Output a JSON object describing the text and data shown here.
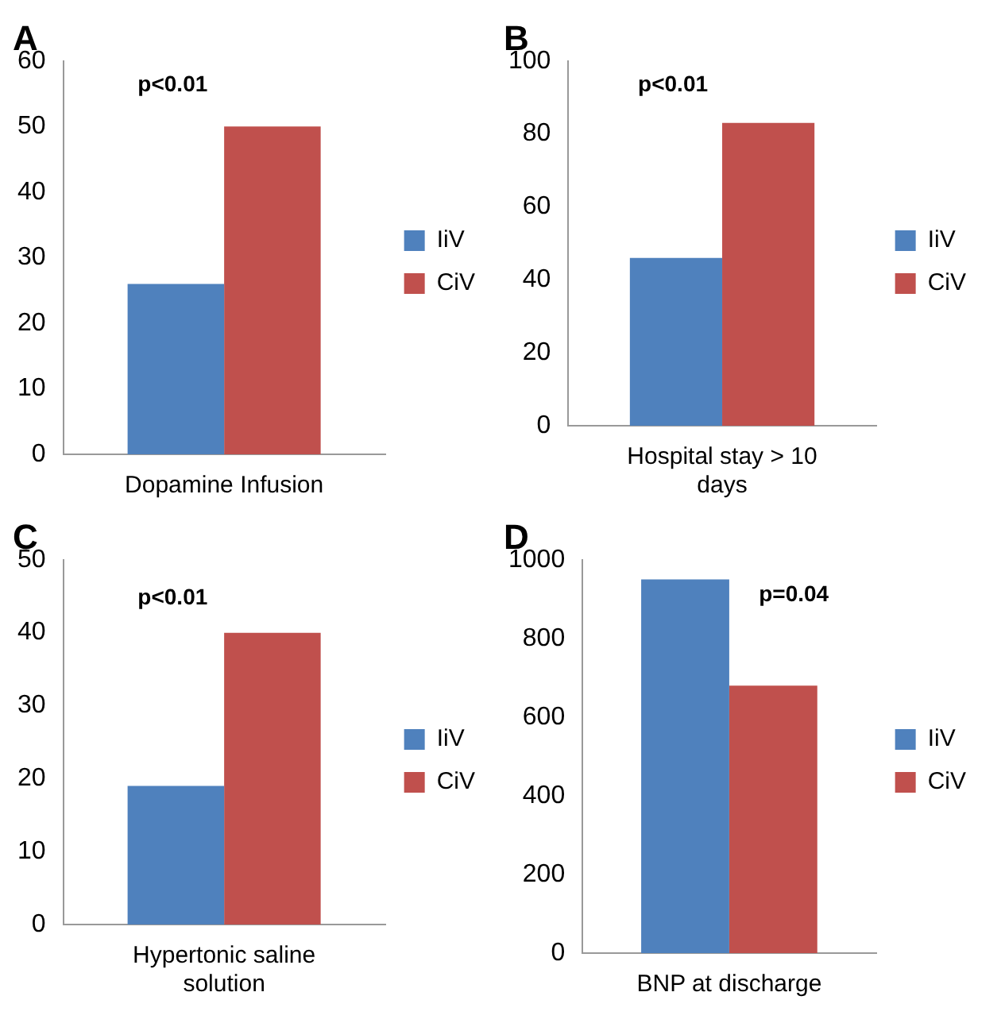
{
  "chart_data": [
    {
      "type": "bar",
      "title": "A",
      "categories": [
        "Dopamine Infusion"
      ],
      "series": [
        {
          "name": "IiV",
          "color": "#4f81bd",
          "values": [
            26
          ]
        },
        {
          "name": "CiV",
          "color": "#c0504d",
          "values": [
            50
          ]
        }
      ],
      "ylim": [
        0,
        60
      ],
      "yticks": [
        0,
        10,
        20,
        30,
        40,
        50,
        60
      ],
      "grid": false,
      "legend": "right",
      "annotations": [
        "p<0.01"
      ]
    },
    {
      "type": "bar",
      "title": "B",
      "categories": [
        "Hospital stay > 10 days"
      ],
      "series": [
        {
          "name": "IiV",
          "color": "#4f81bd",
          "values": [
            46
          ]
        },
        {
          "name": "CiV",
          "color": "#c0504d",
          "values": [
            83
          ]
        }
      ],
      "ylim": [
        0,
        100
      ],
      "yticks": [
        0,
        20,
        40,
        60,
        80,
        100
      ],
      "grid": false,
      "legend": "right",
      "annotations": [
        "p<0.01"
      ]
    },
    {
      "type": "bar",
      "title": "C",
      "categories": [
        "Hypertonic saline solution"
      ],
      "series": [
        {
          "name": "IiV",
          "color": "#4f81bd",
          "values": [
            19
          ]
        },
        {
          "name": "CiV",
          "color": "#c0504d",
          "values": [
            40
          ]
        }
      ],
      "ylim": [
        0,
        50
      ],
      "yticks": [
        0,
        10,
        20,
        30,
        40,
        50
      ],
      "grid": false,
      "legend": "right",
      "annotations": [
        "p<0.01"
      ]
    },
    {
      "type": "bar",
      "title": "D",
      "categories": [
        "BNP at discharge"
      ],
      "series": [
        {
          "name": "IiV",
          "color": "#4f81bd",
          "values": [
            950
          ]
        },
        {
          "name": "CiV",
          "color": "#c0504d",
          "values": [
            680
          ]
        }
      ],
      "ylim": [
        0,
        1000
      ],
      "yticks": [
        0,
        200,
        400,
        600,
        800,
        1000
      ],
      "grid": false,
      "legend": "right",
      "annotations": [
        "p=0.04"
      ]
    }
  ]
}
